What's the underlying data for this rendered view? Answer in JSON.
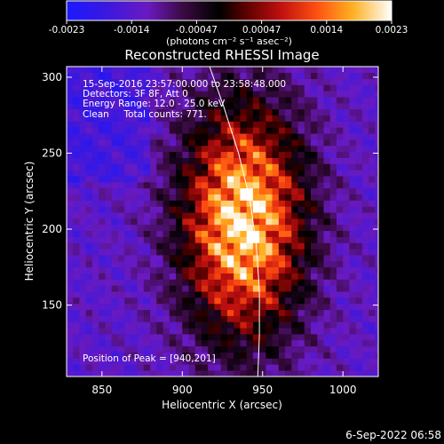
{
  "colorbar": {
    "ticks": [
      "-0.0023",
      "-0.0014",
      "-0.00047",
      "0.00047",
      "0.0014",
      "0.0023"
    ],
    "units": "(photons cm⁻² s⁻¹ asec⁻²)"
  },
  "title": "Reconstructed RHESSI Image",
  "annotations": [
    "15-Sep-2016 23:57:00.000 to 23:58:48.000",
    "Detectors: 3F 8F, Att 0",
    "Energy Range: 12.0 - 25.0 keV",
    "Clean     Total counts: 771."
  ],
  "peak_label": "Position of Peak = [940,201]",
  "footer_timestamp": "6-Sep-2022 06:58",
  "chart_data": {
    "type": "heatmap",
    "xlabel": "Heliocentric X (arcsec)",
    "ylabel": "Heliocentric Y (arcsec)",
    "xlim": [
      828,
      1022
    ],
    "ylim": [
      103,
      307
    ],
    "xticks": [
      850,
      900,
      950,
      1000
    ],
    "yticks": [
      150,
      200,
      250,
      300
    ],
    "xtick_labels": [
      "850",
      "900",
      "950",
      "1000"
    ],
    "ytick_labels": [
      "150",
      "200",
      "250",
      "300"
    ],
    "clim": [
      -0.0023,
      0.0023
    ],
    "colormap": "rhessi-ct5 (blue-purple-black-red-orange-yellow-white)",
    "peak_position": [
      940,
      201
    ],
    "source_center": [
      938,
      205
    ],
    "limb_line": [
      [
        917,
        307
      ],
      [
        926,
        280
      ],
      [
        935,
        250
      ],
      [
        942,
        220
      ],
      [
        946,
        190
      ],
      [
        948,
        160
      ],
      [
        948,
        130
      ],
      [
        947,
        103
      ]
    ]
  }
}
